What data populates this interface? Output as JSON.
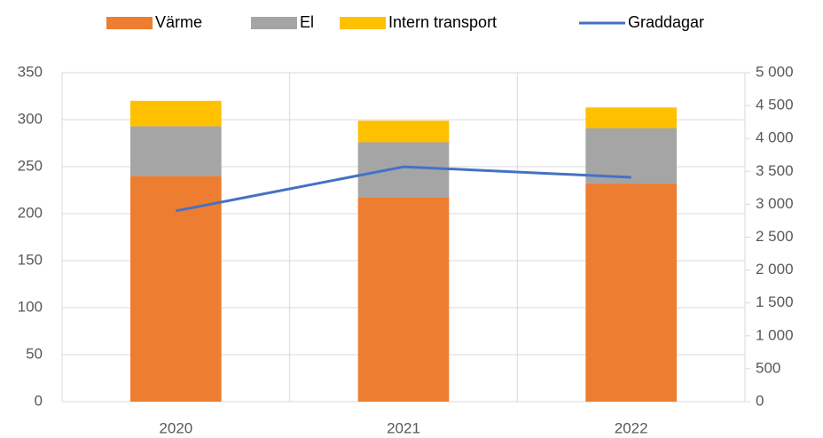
{
  "chart_data": {
    "type": "bar",
    "categories": [
      "2020",
      "2021",
      "2022"
    ],
    "series": [
      {
        "name": "Värme",
        "color": "#ED7D31",
        "values": [
          240,
          217,
          232
        ]
      },
      {
        "name": "El",
        "color": "#A5A5A5",
        "values": [
          53,
          59,
          59
        ]
      },
      {
        "name": "Intern transport",
        "color": "#FFC000",
        "values": [
          27,
          23,
          22
        ]
      },
      {
        "name": "Graddagar",
        "color": "#4472C4",
        "type": "line",
        "axis": "y2",
        "values": [
          2900,
          3570,
          3410
        ]
      }
    ],
    "ylim": [
      0,
      350
    ],
    "yticks": [
      0,
      50,
      100,
      150,
      200,
      250,
      300,
      350
    ],
    "y2lim": [
      0,
      5000
    ],
    "y2ticks": [
      0,
      500,
      {
        "value": 1000,
        "label": "1 000"
      },
      {
        "value": 1500,
        "label": "1 500"
      },
      {
        "value": 2000,
        "label": "2 000"
      },
      {
        "value": 2500,
        "label": "2 500"
      },
      {
        "value": 3000,
        "label": "3 000"
      },
      {
        "value": 3500,
        "label": "3 500"
      },
      {
        "value": 4000,
        "label": "4 000"
      },
      {
        "value": 4500,
        "label": "4 500"
      },
      {
        "value": 5000,
        "label": "5 000"
      }
    ],
    "grid": true,
    "legend": "top"
  }
}
